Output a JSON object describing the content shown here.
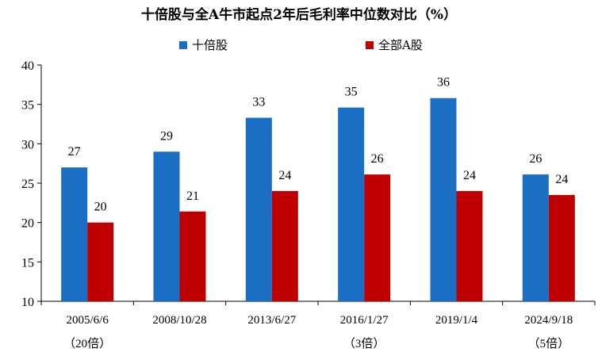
{
  "chart_data": {
    "type": "bar",
    "title": "十倍股与全A牛市起点2年后毛利率中位数对比（%）",
    "categories": [
      "2005/6/6",
      "2008/10/28",
      "2013/6/27",
      "2016/1/27",
      "2019/1/4",
      "2024/9/18"
    ],
    "category_notes": [
      "（20倍）",
      "",
      "",
      "（3倍）",
      "",
      "（5倍）"
    ],
    "series": [
      {
        "name": "十倍股",
        "color": "#1a6fc4",
        "values": [
          27.0,
          29.0,
          33.3,
          34.6,
          35.8,
          26.1
        ],
        "labels": [
          "27",
          "29",
          "33",
          "35",
          "36",
          "26"
        ]
      },
      {
        "name": "全部A股",
        "color": "#c00000",
        "values": [
          20.0,
          21.4,
          24.0,
          26.1,
          24.0,
          23.5
        ],
        "labels": [
          "20",
          "21",
          "24",
          "26",
          "24",
          "24"
        ]
      }
    ],
    "ylim": [
      10,
      40
    ],
    "yticks": [
      "10",
      "15",
      "20",
      "25",
      "30",
      "35",
      "40"
    ],
    "legend_position": "top",
    "grid": false
  }
}
